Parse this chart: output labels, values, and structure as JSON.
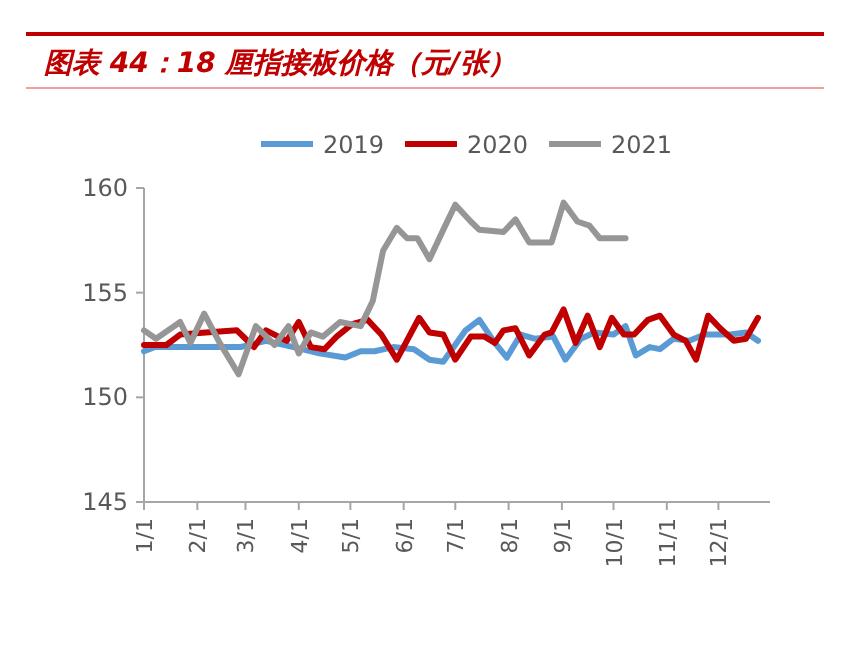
{
  "chart_data": {
    "type": "line",
    "title": "图表 44：18 厘指接板价格（元/张）",
    "xlim": [
      "--01-01",
      "--12-31"
    ],
    "xticks": [
      {
        "value": "--01-01",
        "label": "1/1"
      },
      {
        "value": "--02-01",
        "label": "2/1"
      },
      {
        "value": "--03-01",
        "label": "3/1"
      },
      {
        "value": "--04-01",
        "label": "4/1"
      },
      {
        "value": "--05-01",
        "label": "5/1"
      },
      {
        "value": "--06-01",
        "label": "6/1"
      },
      {
        "value": "--07-01",
        "label": "7/1"
      },
      {
        "value": "--08-01",
        "label": "8/1"
      },
      {
        "value": "--09-01",
        "label": "9/1"
      },
      {
        "value": "--10-01",
        "label": "10/1"
      },
      {
        "value": "--11-01",
        "label": "11/1"
      },
      {
        "value": "--12-01",
        "label": "12/1"
      }
    ],
    "ylim": [
      145,
      160
    ],
    "yticks": [
      145,
      150,
      155,
      160
    ],
    "legend": "top",
    "grid": false,
    "marker": "none",
    "line_style": "solid",
    "series": [
      {
        "name": "2019",
        "color": "#5b9bd5",
        "x": [
          "--01-01",
          "--01-07",
          "--02-26",
          "--03-13",
          "--03-29",
          "--04-13",
          "--04-28",
          "--05-07",
          "--05-15",
          "--05-26",
          "--06-07",
          "--06-16",
          "--06-24",
          "--07-07",
          "--07-15",
          "--07-24",
          "--07-31",
          "--08-08",
          "--08-16",
          "--08-27",
          "--09-03",
          "--09-12",
          "--09-20",
          "--10-01",
          "--10-08",
          "--10-14",
          "--10-22",
          "--10-28",
          "--11-05",
          "--11-14",
          "--11-23",
          "--12-08",
          "--12-17",
          "--12-24"
        ],
        "values": [
          152.2,
          152.4,
          152.4,
          152.7,
          152.4,
          152.1,
          151.9,
          152.2,
          152.2,
          152.4,
          152.3,
          151.8,
          151.7,
          153.2,
          153.7,
          152.6,
          151.9,
          153.0,
          152.8,
          152.9,
          151.8,
          152.8,
          153.1,
          153.0,
          153.4,
          152.0,
          152.4,
          152.3,
          152.8,
          152.7,
          153.0,
          153.0,
          153.1,
          152.7
        ]
      },
      {
        "name": "2020",
        "color": "#c00000",
        "x": [
          "--01-01",
          "--01-14",
          "--01-22",
          "--02-06",
          "--02-24",
          "--03-06",
          "--03-13",
          "--03-25",
          "--04-01",
          "--04-08",
          "--04-16",
          "--04-23",
          "--05-02",
          "--05-11",
          "--05-19",
          "--05-28",
          "--06-10",
          "--06-16",
          "--06-24",
          "--07-01",
          "--07-10",
          "--07-18",
          "--07-24",
          "--07-29",
          "--08-05",
          "--08-13",
          "--08-22",
          "--08-26",
          "--09-02",
          "--09-09",
          "--09-16",
          "--09-23",
          "--09-30",
          "--10-07",
          "--10-13",
          "--10-21",
          "--10-28",
          "--11-05",
          "--11-12",
          "--11-18",
          "--11-25",
          "--12-02",
          "--12-10",
          "--12-17",
          "--12-24"
        ],
        "values": [
          152.5,
          152.5,
          153.0,
          153.1,
          153.2,
          152.4,
          153.2,
          152.7,
          153.6,
          152.4,
          152.3,
          152.9,
          153.5,
          153.7,
          153.0,
          151.8,
          153.8,
          153.1,
          153.0,
          151.8,
          152.9,
          152.9,
          152.6,
          153.2,
          153.3,
          152.0,
          153.0,
          153.1,
          154.2,
          152.6,
          153.9,
          152.4,
          153.8,
          153.0,
          153.0,
          153.7,
          153.9,
          153.0,
          152.7,
          151.8,
          153.9,
          153.3,
          152.7,
          152.8,
          153.8
        ]
      },
      {
        "name": "2021",
        "color": "#969696",
        "x": [
          "--01-01",
          "--01-08",
          "--01-22",
          "--01-28",
          "--02-05",
          "--02-14",
          "--02-25",
          "--03-07",
          "--03-18",
          "--03-26",
          "--04-01",
          "--04-08",
          "--04-15",
          "--04-25",
          "--05-07",
          "--05-14",
          "--05-20",
          "--05-28",
          "--06-03",
          "--06-09",
          "--06-16",
          "--06-24",
          "--07-01",
          "--07-10",
          "--07-15",
          "--07-29",
          "--08-05",
          "--08-13",
          "--08-26",
          "--09-02",
          "--09-10",
          "--09-17",
          "--09-23",
          "--10-08"
        ],
        "values": [
          153.2,
          152.8,
          153.6,
          152.6,
          154.0,
          152.6,
          151.1,
          153.4,
          152.5,
          153.4,
          152.1,
          153.1,
          152.9,
          153.6,
          153.4,
          154.6,
          157.0,
          158.1,
          157.6,
          157.6,
          156.6,
          158.0,
          159.2,
          158.4,
          158.0,
          157.9,
          158.5,
          157.4,
          157.4,
          159.3,
          158.4,
          158.2,
          157.6,
          157.6
        ]
      }
    ]
  }
}
